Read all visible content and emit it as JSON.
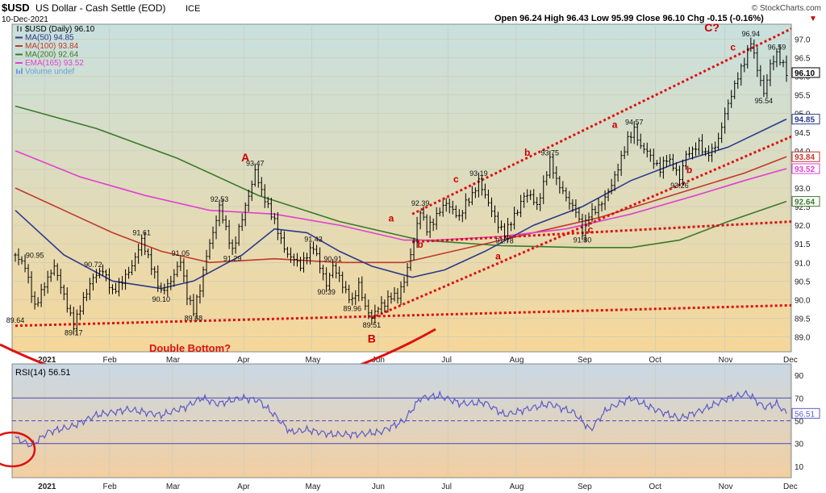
{
  "header": {
    "symbol": "$USD",
    "name": "US Dollar - Cash Settle (EOD)",
    "exchange": "ICE",
    "date": "10-Dec-2021",
    "ohlc_text": "Open 96.24  High 96.43  Low 95.99  Close 96.10  Chg -0.15 (-0.16%)",
    "chg_arrow": "▼",
    "copyright": "© StockCharts.com"
  },
  "legend": [
    {
      "text": "$USD (Daily) 96.10",
      "color": "#000000",
      "marker": "ohlc"
    },
    {
      "text": "MA(50) 94.85",
      "color": "#2b3a8c",
      "marker": "line"
    },
    {
      "text": "MA(100) 93.84",
      "color": "#c0392b",
      "marker": "line"
    },
    {
      "text": "MA(200) 92.64",
      "color": "#3b7a2a",
      "marker": "line"
    },
    {
      "text": "EMA(165) 93.52",
      "color": "#e040d0",
      "marker": "line"
    },
    {
      "text": "Volume undef",
      "color": "#6aa0d8",
      "marker": "bars"
    }
  ],
  "rsi_legend": "RSI(14) 56.51",
  "colors": {
    "price": "#000000",
    "ma50": "#2b3a8c",
    "ma100": "#c0392b",
    "ma200": "#3b7a2a",
    "ema165": "#e040d0",
    "rsi": "#5a5ac8",
    "trend": "#dd1111",
    "grid": "#c9c9b8",
    "price_bg_top": "#c8e0de",
    "price_bg_bottom": "#f6d79a",
    "rsi_bg_top": "#c9d8e6",
    "rsi_bg_bottom": "#f3cfa0",
    "tag_bg": "#ffffff"
  },
  "chart_data": {
    "type": "ohlc",
    "title": "$USD US Dollar - Cash Settle (EOD) ICE",
    "months": [
      "2021",
      "Feb",
      "Mar",
      "Apr",
      "May",
      "Jun",
      "Jul",
      "Aug",
      "Sep",
      "Oct",
      "Nov",
      "Dec"
    ],
    "price_axis": {
      "min": 88.6,
      "max": 97.4,
      "ticks": [
        89.0,
        89.5,
        90.0,
        90.5,
        91.0,
        91.5,
        92.0,
        92.5,
        93.0,
        93.5,
        94.0,
        94.5,
        95.0,
        95.5,
        96.0,
        96.5,
        97.0
      ]
    },
    "rsi_axis": {
      "min": 0,
      "max": 100,
      "ticks": [
        10,
        30,
        50,
        70,
        90
      ],
      "levels": [
        30,
        50,
        70
      ]
    },
    "price_path": [
      [
        0,
        91.2
      ],
      [
        6,
        90.9
      ],
      [
        12,
        89.8
      ],
      [
        18,
        90.4
      ],
      [
        24,
        90.9
      ],
      [
        30,
        90.1
      ],
      [
        36,
        89.3
      ],
      [
        42,
        90.0
      ],
      [
        48,
        90.6
      ],
      [
        54,
        90.8
      ],
      [
        60,
        90.2
      ],
      [
        66,
        90.5
      ],
      [
        72,
        90.9
      ],
      [
        78,
        91.6
      ],
      [
        84,
        90.9
      ],
      [
        90,
        90.2
      ],
      [
        96,
        90.5
      ],
      [
        102,
        91.05
      ],
      [
        106,
        90.1
      ],
      [
        110,
        89.7
      ],
      [
        114,
        90.3
      ],
      [
        118,
        91.2
      ],
      [
        122,
        91.8
      ],
      [
        126,
        92.5
      ],
      [
        130,
        91.9
      ],
      [
        134,
        91.3
      ],
      [
        138,
        91.9
      ],
      [
        142,
        92.5
      ],
      [
        146,
        93.1
      ],
      [
        148,
        93.47
      ],
      [
        152,
        92.9
      ],
      [
        156,
        92.5
      ],
      [
        160,
        92.1
      ],
      [
        164,
        91.6
      ],
      [
        168,
        91.2
      ],
      [
        172,
        91.1
      ],
      [
        176,
        90.9
      ],
      [
        180,
        91.2
      ],
      [
        184,
        91.43
      ],
      [
        188,
        90.9
      ],
      [
        192,
        90.4
      ],
      [
        196,
        90.9
      ],
      [
        200,
        90.6
      ],
      [
        204,
        90.2
      ],
      [
        208,
        89.96
      ],
      [
        212,
        90.4
      ],
      [
        216,
        89.8
      ],
      [
        220,
        89.51
      ],
      [
        224,
        89.8
      ],
      [
        228,
        89.9
      ],
      [
        232,
        90.1
      ],
      [
        236,
        90.1
      ],
      [
        240,
        90.5
      ],
      [
        244,
        91.2
      ],
      [
        248,
        92.0
      ],
      [
        250,
        92.39
      ],
      [
        254,
        91.9
      ],
      [
        258,
        92.1
      ],
      [
        262,
        92.4
      ],
      [
        266,
        92.6
      ],
      [
        270,
        92.4
      ],
      [
        274,
        92.2
      ],
      [
        278,
        92.6
      ],
      [
        282,
        92.8
      ],
      [
        286,
        93.19
      ],
      [
        290,
        92.8
      ],
      [
        294,
        92.4
      ],
      [
        298,
        92.0
      ],
      [
        302,
        91.78
      ],
      [
        306,
        92.1
      ],
      [
        310,
        92.4
      ],
      [
        314,
        92.8
      ],
      [
        318,
        92.8
      ],
      [
        322,
        92.5
      ],
      [
        326,
        93.1
      ],
      [
        330,
        93.75
      ],
      [
        334,
        93.2
      ],
      [
        338,
        92.9
      ],
      [
        342,
        92.6
      ],
      [
        346,
        92.4
      ],
      [
        350,
        91.8
      ],
      [
        354,
        92.3
      ],
      [
        358,
        92.4
      ],
      [
        362,
        92.6
      ],
      [
        366,
        92.9
      ],
      [
        370,
        93.3
      ],
      [
        374,
        93.8
      ],
      [
        378,
        94.3
      ],
      [
        382,
        94.57
      ],
      [
        386,
        94.1
      ],
      [
        390,
        94.0
      ],
      [
        394,
        93.7
      ],
      [
        398,
        93.5
      ],
      [
        402,
        93.8
      ],
      [
        406,
        93.6
      ],
      [
        410,
        93.26
      ],
      [
        414,
        93.9
      ],
      [
        418,
        94.0
      ],
      [
        422,
        94.2
      ],
      [
        426,
        93.9
      ],
      [
        430,
        94.0
      ],
      [
        434,
        94.3
      ],
      [
        438,
        95.0
      ],
      [
        442,
        95.5
      ],
      [
        446,
        96.0
      ],
      [
        450,
        96.4
      ],
      [
        454,
        96.94
      ],
      [
        458,
        96.2
      ],
      [
        462,
        95.54
      ],
      [
        466,
        96.3
      ],
      [
        470,
        96.59
      ],
      [
        474,
        96.3
      ],
      [
        476,
        96.1
      ]
    ],
    "ma200": [
      [
        0,
        95.2
      ],
      [
        50,
        94.6
      ],
      [
        100,
        93.8
      ],
      [
        150,
        92.8
      ],
      [
        200,
        92.1
      ],
      [
        250,
        91.6
      ],
      [
        300,
        91.45
      ],
      [
        350,
        91.4
      ],
      [
        380,
        91.4
      ],
      [
        410,
        91.6
      ],
      [
        440,
        92.1
      ],
      [
        476,
        92.64
      ]
    ],
    "ma100": [
      [
        0,
        93.0
      ],
      [
        30,
        92.4
      ],
      [
        60,
        91.8
      ],
      [
        90,
        91.3
      ],
      [
        120,
        91.0
      ],
      [
        160,
        91.1
      ],
      [
        200,
        91.0
      ],
      [
        240,
        91.0
      ],
      [
        270,
        91.3
      ],
      [
        300,
        91.6
      ],
      [
        330,
        91.9
      ],
      [
        360,
        92.2
      ],
      [
        390,
        92.6
      ],
      [
        420,
        93.0
      ],
      [
        450,
        93.4
      ],
      [
        476,
        93.84
      ]
    ],
    "ema165": [
      [
        0,
        94.0
      ],
      [
        40,
        93.3
      ],
      [
        80,
        92.8
      ],
      [
        120,
        92.4
      ],
      [
        160,
        92.3
      ],
      [
        200,
        92.0
      ],
      [
        240,
        91.6
      ],
      [
        260,
        91.6
      ],
      [
        300,
        91.7
      ],
      [
        340,
        91.9
      ],
      [
        380,
        92.3
      ],
      [
        420,
        92.8
      ],
      [
        450,
        93.2
      ],
      [
        476,
        93.52
      ]
    ],
    "ma50": [
      [
        0,
        92.4
      ],
      [
        30,
        91.2
      ],
      [
        60,
        90.5
      ],
      [
        90,
        90.3
      ],
      [
        110,
        90.5
      ],
      [
        140,
        91.2
      ],
      [
        160,
        91.9
      ],
      [
        180,
        91.8
      ],
      [
        200,
        91.3
      ],
      [
        220,
        90.9
      ],
      [
        245,
        90.6
      ],
      [
        265,
        90.8
      ],
      [
        290,
        91.3
      ],
      [
        320,
        92.0
      ],
      [
        350,
        92.5
      ],
      [
        380,
        93.2
      ],
      [
        410,
        93.7
      ],
      [
        440,
        94.1
      ],
      [
        476,
        94.85
      ]
    ],
    "rsi": [
      [
        0,
        35
      ],
      [
        10,
        28
      ],
      [
        20,
        40
      ],
      [
        35,
        45
      ],
      [
        50,
        55
      ],
      [
        70,
        60
      ],
      [
        90,
        55
      ],
      [
        105,
        62
      ],
      [
        115,
        70
      ],
      [
        125,
        65
      ],
      [
        140,
        70
      ],
      [
        150,
        68
      ],
      [
        160,
        55
      ],
      [
        170,
        40
      ],
      [
        180,
        42
      ],
      [
        195,
        38
      ],
      [
        210,
        38
      ],
      [
        225,
        40
      ],
      [
        240,
        50
      ],
      [
        250,
        70
      ],
      [
        262,
        72
      ],
      [
        275,
        65
      ],
      [
        290,
        66
      ],
      [
        302,
        55
      ],
      [
        315,
        60
      ],
      [
        330,
        65
      ],
      [
        345,
        57
      ],
      [
        355,
        42
      ],
      [
        365,
        60
      ],
      [
        380,
        70
      ],
      [
        395,
        60
      ],
      [
        410,
        52
      ],
      [
        425,
        60
      ],
      [
        440,
        70
      ],
      [
        452,
        74
      ],
      [
        462,
        62
      ],
      [
        470,
        65
      ],
      [
        476,
        56.51
      ]
    ],
    "trendlines": [
      {
        "from": [
          0,
          89.3
        ],
        "to": [
          480,
          89.85
        ]
      },
      {
        "from": [
          245,
          91.55
        ],
        "to": [
          480,
          92.1
        ]
      },
      {
        "from": [
          220,
          89.51
        ],
        "to": [
          480,
          94.4
        ]
      },
      {
        "from": [
          245,
          92.3
        ],
        "to": [
          480,
          97.3
        ]
      }
    ],
    "price_labels": [
      {
        "i": 0,
        "v": 89.64,
        "text": "89.64",
        "pos": "below"
      },
      {
        "i": 36,
        "v": 89.3,
        "text": "89.17",
        "pos": "below"
      },
      {
        "i": 12,
        "v": 91.0,
        "text": "90.95",
        "pos": "above"
      },
      {
        "i": 48,
        "v": 90.75,
        "text": "90.72",
        "pos": "above"
      },
      {
        "i": 78,
        "v": 91.6,
        "text": "91.61",
        "pos": "above"
      },
      {
        "i": 102,
        "v": 91.05,
        "text": "91.05",
        "pos": "above"
      },
      {
        "i": 90,
        "v": 90.2,
        "text": "90.10",
        "pos": "below"
      },
      {
        "i": 110,
        "v": 89.7,
        "text": "89.68",
        "pos": "below"
      },
      {
        "i": 126,
        "v": 92.5,
        "text": "92.53",
        "pos": "above"
      },
      {
        "i": 134,
        "v": 91.3,
        "text": "91.29",
        "pos": "below"
      },
      {
        "i": 148,
        "v": 93.47,
        "text": "93.47",
        "pos": "above"
      },
      {
        "i": 184,
        "v": 91.43,
        "text": "91.43",
        "pos": "above"
      },
      {
        "i": 196,
        "v": 90.9,
        "text": "90.91",
        "pos": "above"
      },
      {
        "i": 192,
        "v": 90.4,
        "text": "90.39",
        "pos": "below"
      },
      {
        "i": 208,
        "v": 89.96,
        "text": "89.96",
        "pos": "below"
      },
      {
        "i": 220,
        "v": 89.51,
        "text": "89.51",
        "pos": "below"
      },
      {
        "i": 250,
        "v": 92.39,
        "text": "92.39",
        "pos": "above"
      },
      {
        "i": 286,
        "v": 93.19,
        "text": "93.19",
        "pos": "above"
      },
      {
        "i": 302,
        "v": 91.78,
        "text": "91.78",
        "pos": "below"
      },
      {
        "i": 330,
        "v": 93.75,
        "text": "93.75",
        "pos": "above"
      },
      {
        "i": 350,
        "v": 91.8,
        "text": "91.80",
        "pos": "below"
      },
      {
        "i": 382,
        "v": 94.57,
        "text": "94.57",
        "pos": "above"
      },
      {
        "i": 410,
        "v": 93.26,
        "text": "93.26",
        "pos": "below"
      },
      {
        "i": 454,
        "v": 96.94,
        "text": "96.94",
        "pos": "above"
      },
      {
        "i": 462,
        "v": 95.54,
        "text": "95.54",
        "pos": "below"
      },
      {
        "i": 470,
        "v": 96.59,
        "text": "96.59",
        "pos": "above"
      }
    ],
    "wave_labels": [
      {
        "text": "A",
        "i": 142,
        "v": 93.72
      },
      {
        "text": "B",
        "i": 220,
        "v": 88.85
      },
      {
        "text": "a",
        "i": 232,
        "v": 92.1
      },
      {
        "text": "b",
        "i": 250,
        "v": 91.4
      },
      {
        "text": "c",
        "i": 272,
        "v": 93.15
      },
      {
        "text": "a",
        "i": 298,
        "v": 91.08
      },
      {
        "text": "b",
        "i": 316,
        "v": 93.87
      },
      {
        "text": "c",
        "i": 355,
        "v": 91.8
      },
      {
        "text": "a",
        "i": 370,
        "v": 94.62
      },
      {
        "text": "b",
        "i": 416,
        "v": 93.4
      },
      {
        "text": "c",
        "i": 443,
        "v": 96.7
      },
      {
        "text": "C?",
        "i": 430,
        "v": 97.2
      }
    ],
    "annotations": {
      "double_bottom": "Double Bottom?"
    },
    "last_values": [
      {
        "key": "price",
        "value": 96.1,
        "text": "96.10"
      },
      {
        "key": "ma50",
        "value": 94.85,
        "text": "94.85"
      },
      {
        "key": "ma100",
        "value": 93.84,
        "text": "93.84"
      },
      {
        "key": "ema165",
        "value": 93.52,
        "text": "93.52"
      },
      {
        "key": "ma200",
        "value": 92.64,
        "text": "92.64"
      }
    ],
    "rsi_last": {
      "value": 56.51,
      "text": "56.51"
    }
  }
}
